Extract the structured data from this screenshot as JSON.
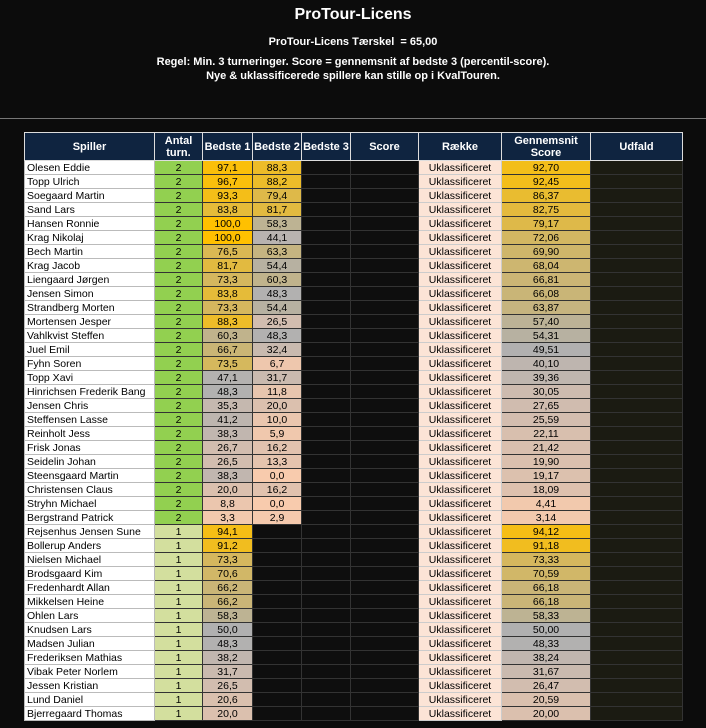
{
  "header": {
    "title": "ProTour-Licens",
    "threshold": "ProTour-Licens Tærskel  = 65,00",
    "rule_1": "Regel: Min. 3 turneringer. Score = gennemsnit af bedste 3 (percentil-score).",
    "rule_2": "Nye & uklassificerede spillere kan stille op i KvalTouren."
  },
  "table": {
    "columns": [
      "Spiller",
      "Antal turn.",
      "Bedste 1",
      "Bedste 2",
      "Bedste 3",
      "Score",
      "Række",
      "Gennemsnit Score",
      "Udfald"
    ],
    "rows": [
      [
        "Olesen Eddie",
        "2",
        "97,1",
        "88,3",
        "Uklassificeret",
        "92,70"
      ],
      [
        "Topp Ulrich",
        "2",
        "96,7",
        "88,2",
        "Uklassificeret",
        "92,45"
      ],
      [
        "Soegaard Martin",
        "2",
        "93,3",
        "79,4",
        "Uklassificeret",
        "86,37"
      ],
      [
        "Sand Lars",
        "2",
        "83,8",
        "81,7",
        "Uklassificeret",
        "82,75"
      ],
      [
        "Hansen Ronnie",
        "2",
        "100,0",
        "58,3",
        "Uklassificeret",
        "79,17"
      ],
      [
        "Krag Nikolaj",
        "2",
        "100,0",
        "44,1",
        "Uklassificeret",
        "72,06"
      ],
      [
        "Bech Martin",
        "2",
        "76,5",
        "63,3",
        "Uklassificeret",
        "69,90"
      ],
      [
        "Krag Jacob",
        "2",
        "81,7",
        "54,4",
        "Uklassificeret",
        "68,04"
      ],
      [
        "Liengaard Jørgen",
        "2",
        "73,3",
        "60,3",
        "Uklassificeret",
        "66,81"
      ],
      [
        "Jensen Simon",
        "2",
        "83,8",
        "48,3",
        "Uklassificeret",
        "66,08"
      ],
      [
        "Strandberg Morten",
        "2",
        "73,3",
        "54,4",
        "Uklassificeret",
        "63,87"
      ],
      [
        "Mortensen Jesper",
        "2",
        "88,3",
        "26,5",
        "Uklassificeret",
        "57,40"
      ],
      [
        "Vahlkvist Steffen",
        "2",
        "60,3",
        "48,3",
        "Uklassificeret",
        "54,31"
      ],
      [
        "Juel Emil",
        "2",
        "66,7",
        "32,4",
        "Uklassificeret",
        "49,51"
      ],
      [
        "Fyhn Soren",
        "2",
        "73,5",
        "6,7",
        "Uklassificeret",
        "40,10"
      ],
      [
        "Topp Xavi",
        "2",
        "47,1",
        "31,7",
        "Uklassificeret",
        "39,36"
      ],
      [
        "Hinrichsen Frederik Bang",
        "2",
        "48,3",
        "11,8",
        "Uklassificeret",
        "30,05"
      ],
      [
        "Jensen Chris",
        "2",
        "35,3",
        "20,0",
        "Uklassificeret",
        "27,65"
      ],
      [
        "Steffensen Lasse",
        "2",
        "41,2",
        "10,0",
        "Uklassificeret",
        "25,59"
      ],
      [
        "Reinholt Jess",
        "2",
        "38,3",
        "5,9",
        "Uklassificeret",
        "22,11"
      ],
      [
        "Frisk Jonas",
        "2",
        "26,7",
        "16,2",
        "Uklassificeret",
        "21,42"
      ],
      [
        "Seidelin Johan",
        "2",
        "26,5",
        "13,3",
        "Uklassificeret",
        "19,90"
      ],
      [
        "Steensgaard Martin",
        "2",
        "38,3",
        "0,0",
        "Uklassificeret",
        "19,17"
      ],
      [
        "Christensen Claus",
        "2",
        "20,0",
        "16,2",
        "Uklassificeret",
        "18,09"
      ],
      [
        "Stryhn Michael",
        "2",
        "8,8",
        "0,0",
        "Uklassificeret",
        "4,41"
      ],
      [
        "Bergstrand Patrick",
        "2",
        "3,3",
        "2,9",
        "Uklassificeret",
        "3,14"
      ],
      [
        "Rejsenhus Jensen Sune",
        "1",
        "94,1",
        null,
        "Uklassificeret",
        "94,12"
      ],
      [
        "Bollerup Anders",
        "1",
        "91,2",
        null,
        "Uklassificeret",
        "91,18"
      ],
      [
        "Nielsen Michael",
        "1",
        "73,3",
        null,
        "Uklassificeret",
        "73,33"
      ],
      [
        "Brodsgaard Kim",
        "1",
        "70,6",
        null,
        "Uklassificeret",
        "70,59"
      ],
      [
        "Fredenhardt Allan",
        "1",
        "66,2",
        null,
        "Uklassificeret",
        "66,18"
      ],
      [
        "Mikkelsen Heine",
        "1",
        "66,2",
        null,
        "Uklassificeret",
        "66,18"
      ],
      [
        "Ohlen Lars",
        "1",
        "58,3",
        null,
        "Uklassificeret",
        "58,33"
      ],
      [
        "Knudsen Lars",
        "1",
        "50,0",
        null,
        "Uklassificeret",
        "50,00"
      ],
      [
        "Madsen Julian",
        "1",
        "48,3",
        null,
        "Uklassificeret",
        "48,33"
      ],
      [
        "Frederiksen Mathias",
        "1",
        "38,2",
        null,
        "Uklassificeret",
        "38,24"
      ],
      [
        "Vibak Peter Norlem",
        "1",
        "31,7",
        null,
        "Uklassificeret",
        "31,67"
      ],
      [
        "Jessen Kristian",
        "1",
        "26,5",
        null,
        "Uklassificeret",
        "26,47"
      ],
      [
        "Lund Daniel",
        "1",
        "20,6",
        null,
        "Uklassificeret",
        "20,59"
      ],
      [
        "Bjerregaard Thomas",
        "1",
        "20,0",
        null,
        "Uklassificeret",
        "20,00"
      ]
    ]
  }
}
